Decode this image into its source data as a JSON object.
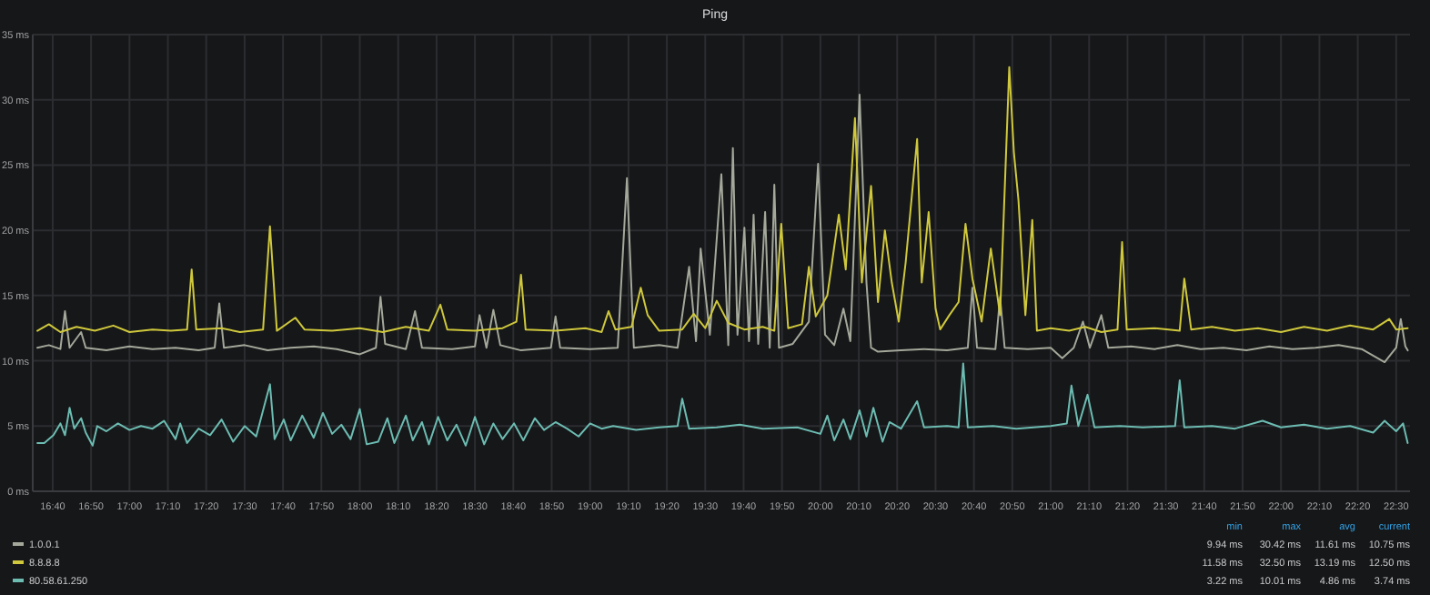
{
  "chart_data": {
    "type": "line",
    "title": "Ping",
    "legend": "bottom",
    "grid": true,
    "marker": "none",
    "line_style": "solid",
    "xlim": [
      16.58,
      22.56
    ],
    "ylim": [
      0,
      35
    ],
    "yticks": [
      {
        "value": 0,
        "label": "0 ms"
      },
      {
        "value": 5,
        "label": "5 ms"
      },
      {
        "value": 10,
        "label": "10 ms"
      },
      {
        "value": 15,
        "label": "15 ms"
      },
      {
        "value": 20,
        "label": "20 ms"
      },
      {
        "value": 25,
        "label": "25 ms"
      },
      {
        "value": 30,
        "label": "30 ms"
      },
      {
        "value": 35,
        "label": "35 ms"
      }
    ],
    "xticks": [
      {
        "value": 16.6667,
        "label": "16:40"
      },
      {
        "value": 16.8333,
        "label": "16:50"
      },
      {
        "value": 17,
        "label": "17:00"
      },
      {
        "value": 17.1667,
        "label": "17:10"
      },
      {
        "value": 17.3333,
        "label": "17:20"
      },
      {
        "value": 17.5,
        "label": "17:30"
      },
      {
        "value": 17.6667,
        "label": "17:40"
      },
      {
        "value": 17.8333,
        "label": "17:50"
      },
      {
        "value": 18,
        "label": "18:00"
      },
      {
        "value": 18.1667,
        "label": "18:10"
      },
      {
        "value": 18.3333,
        "label": "18:20"
      },
      {
        "value": 18.5,
        "label": "18:30"
      },
      {
        "value": 18.6667,
        "label": "18:40"
      },
      {
        "value": 18.8333,
        "label": "18:50"
      },
      {
        "value": 19,
        "label": "19:00"
      },
      {
        "value": 19.1667,
        "label": "19:10"
      },
      {
        "value": 19.3333,
        "label": "19:20"
      },
      {
        "value": 19.5,
        "label": "19:30"
      },
      {
        "value": 19.6667,
        "label": "19:40"
      },
      {
        "value": 19.8333,
        "label": "19:50"
      },
      {
        "value": 20,
        "label": "20:00"
      },
      {
        "value": 20.1667,
        "label": "20:10"
      },
      {
        "value": 20.3333,
        "label": "20:20"
      },
      {
        "value": 20.5,
        "label": "20:30"
      },
      {
        "value": 20.6667,
        "label": "20:40"
      },
      {
        "value": 20.8333,
        "label": "20:50"
      },
      {
        "value": 21,
        "label": "21:00"
      },
      {
        "value": 21.1667,
        "label": "21:10"
      },
      {
        "value": 21.3333,
        "label": "21:20"
      },
      {
        "value": 21.5,
        "label": "21:30"
      },
      {
        "value": 21.6667,
        "label": "21:40"
      },
      {
        "value": 21.8333,
        "label": "21:50"
      },
      {
        "value": 22,
        "label": "22:00"
      },
      {
        "value": 22.1667,
        "label": "22:10"
      },
      {
        "value": 22.3333,
        "label": "22:20"
      },
      {
        "value": 22.5,
        "label": "22:30"
      }
    ],
    "annotations": [
      "min",
      "max",
      "avg",
      "current",
      "9.94 ms",
      "30.42 ms",
      "11.61 ms",
      "10.75 ms",
      "11.58 ms",
      "32.50 ms",
      "13.19 ms",
      "12.50 ms",
      "3.22 ms",
      "10.01 ms",
      "4.86 ms",
      "3.74 ms"
    ],
    "series": [
      {
        "name": "1.0.0.1",
        "color": "#a3a89a",
        "x": [
          16.6,
          16.65,
          16.7,
          16.72,
          16.74,
          16.79,
          16.81,
          16.9,
          17.0,
          17.1,
          17.2,
          17.3,
          17.37,
          17.39,
          17.41,
          17.5,
          17.6,
          17.7,
          17.8,
          17.9,
          18.0,
          18.07,
          18.09,
          18.11,
          18.2,
          18.24,
          18.27,
          18.4,
          18.5,
          18.52,
          18.55,
          18.58,
          18.61,
          18.7,
          18.83,
          18.85,
          18.87,
          19.0,
          19.12,
          19.16,
          19.19,
          19.3,
          19.38,
          19.43,
          19.46,
          19.48,
          19.52,
          19.57,
          19.6,
          19.62,
          19.64,
          19.67,
          19.69,
          19.71,
          19.73,
          19.76,
          19.78,
          19.8,
          19.82,
          19.88,
          19.95,
          19.99,
          20.02,
          20.06,
          20.1,
          20.13,
          20.17,
          20.2,
          20.22,
          20.25,
          20.35,
          20.45,
          20.55,
          20.64,
          20.66,
          20.68,
          20.76,
          20.78,
          20.8,
          20.9,
          21.0,
          21.05,
          21.1,
          21.14,
          21.17,
          21.22,
          21.25,
          21.35,
          21.45,
          21.55,
          21.65,
          21.75,
          21.85,
          21.95,
          22.05,
          22.15,
          22.25,
          22.35,
          22.45,
          22.5,
          22.52,
          22.54,
          22.55
        ],
        "values": [
          11.0,
          11.2,
          10.9,
          13.8,
          11.0,
          12.2,
          11.0,
          10.8,
          11.1,
          10.9,
          11.0,
          10.8,
          11.0,
          14.4,
          11.0,
          11.2,
          10.8,
          11.0,
          11.1,
          10.9,
          10.5,
          11.0,
          14.9,
          11.3,
          10.9,
          13.8,
          11.0,
          10.9,
          11.1,
          13.5,
          11.0,
          13.9,
          11.2,
          10.8,
          11.0,
          13.4,
          11.0,
          10.9,
          11.0,
          24.0,
          11.0,
          11.2,
          11.0,
          17.2,
          11.5,
          18.6,
          12.0,
          24.3,
          11.2,
          26.3,
          12.0,
          20.2,
          11.5,
          21.2,
          11.3,
          21.4,
          11.0,
          23.5,
          11.0,
          11.3,
          13.0,
          25.1,
          12.0,
          11.2,
          14.0,
          11.5,
          30.4,
          16.0,
          11.0,
          10.7,
          10.8,
          10.9,
          10.8,
          11.0,
          15.6,
          11.0,
          10.9,
          14.9,
          11.0,
          10.9,
          11.0,
          10.2,
          11.0,
          13.0,
          11.0,
          13.5,
          11.0,
          11.1,
          10.9,
          11.2,
          10.9,
          11.0,
          10.8,
          11.1,
          10.9,
          11.0,
          11.2,
          10.9,
          9.9,
          11.0,
          13.2,
          11.1,
          10.8
        ]
      },
      {
        "name": "8.8.8.8",
        "color": "#cfc83c",
        "x": [
          16.6,
          16.65,
          16.7,
          16.77,
          16.85,
          16.93,
          17.0,
          17.1,
          17.18,
          17.25,
          17.27,
          17.29,
          17.4,
          17.48,
          17.58,
          17.61,
          17.64,
          17.72,
          17.76,
          17.88,
          18.0,
          18.1,
          18.2,
          18.3,
          18.35,
          18.38,
          18.5,
          18.62,
          18.68,
          18.7,
          18.72,
          18.85,
          18.98,
          19.05,
          19.08,
          19.11,
          19.18,
          19.22,
          19.25,
          19.3,
          19.4,
          19.45,
          19.5,
          19.55,
          19.6,
          19.67,
          19.75,
          19.8,
          19.83,
          19.86,
          19.92,
          19.95,
          19.98,
          20.03,
          20.08,
          20.11,
          20.15,
          20.18,
          20.22,
          20.25,
          20.28,
          20.31,
          20.34,
          20.37,
          20.42,
          20.44,
          20.47,
          20.5,
          20.52,
          20.56,
          20.6,
          20.63,
          20.66,
          20.7,
          20.74,
          20.78,
          20.82,
          20.84,
          20.86,
          20.89,
          20.92,
          20.94,
          21.0,
          21.08,
          21.15,
          21.22,
          21.29,
          21.31,
          21.33,
          21.45,
          21.56,
          21.58,
          21.61,
          21.7,
          21.8,
          21.9,
          22.0,
          22.1,
          22.2,
          22.3,
          22.4,
          22.47,
          22.5,
          22.55
        ],
        "values": [
          12.3,
          12.8,
          12.2,
          12.6,
          12.3,
          12.7,
          12.2,
          12.4,
          12.3,
          12.4,
          17.0,
          12.4,
          12.5,
          12.2,
          12.4,
          20.3,
          12.3,
          13.3,
          12.4,
          12.3,
          12.5,
          12.2,
          12.6,
          12.3,
          14.3,
          12.4,
          12.3,
          12.5,
          13.0,
          16.6,
          12.4,
          12.3,
          12.5,
          12.2,
          13.8,
          12.4,
          12.6,
          15.6,
          13.5,
          12.3,
          12.4,
          13.6,
          12.5,
          14.6,
          12.9,
          12.4,
          12.6,
          12.3,
          20.5,
          12.5,
          12.8,
          17.2,
          13.4,
          15.0,
          21.2,
          17.0,
          28.6,
          16.0,
          23.4,
          14.5,
          20.0,
          16.0,
          13.0,
          17.5,
          27.0,
          16.0,
          21.4,
          14.0,
          12.4,
          13.5,
          14.5,
          20.5,
          16.3,
          13.0,
          18.6,
          13.5,
          32.5,
          26.0,
          22.3,
          13.5,
          20.8,
          12.3,
          12.5,
          12.3,
          12.6,
          12.2,
          12.4,
          19.1,
          12.4,
          12.5,
          12.3,
          16.3,
          12.4,
          12.6,
          12.3,
          12.5,
          12.2,
          12.6,
          12.3,
          12.7,
          12.4,
          13.2,
          12.4,
          12.5
        ]
      },
      {
        "name": "80.58.61.250",
        "color": "#6cbcb2",
        "x": [
          16.6,
          16.63,
          16.67,
          16.7,
          16.72,
          16.74,
          16.76,
          16.79,
          16.81,
          16.84,
          16.86,
          16.9,
          16.95,
          17.0,
          17.05,
          17.1,
          17.15,
          17.2,
          17.22,
          17.25,
          17.3,
          17.35,
          17.4,
          17.45,
          17.5,
          17.55,
          17.61,
          17.63,
          17.67,
          17.7,
          17.75,
          17.8,
          17.84,
          17.88,
          17.92,
          17.96,
          18.0,
          18.03,
          18.08,
          18.12,
          18.15,
          18.2,
          18.23,
          18.27,
          18.3,
          18.34,
          18.38,
          18.42,
          18.46,
          18.5,
          18.54,
          18.58,
          18.62,
          18.67,
          18.71,
          18.76,
          18.8,
          18.85,
          18.9,
          18.95,
          19.0,
          19.05,
          19.1,
          19.2,
          19.3,
          19.38,
          19.4,
          19.43,
          19.55,
          19.65,
          19.75,
          19.9,
          20.0,
          20.03,
          20.06,
          20.1,
          20.13,
          20.17,
          20.2,
          20.23,
          20.27,
          20.3,
          20.35,
          20.42,
          20.45,
          20.55,
          20.6,
          20.62,
          20.64,
          20.75,
          20.85,
          21.0,
          21.07,
          21.09,
          21.12,
          21.16,
          21.19,
          21.3,
          21.4,
          21.54,
          21.56,
          21.58,
          21.7,
          21.8,
          21.92,
          22.0,
          22.1,
          22.2,
          22.3,
          22.4,
          22.45,
          22.5,
          22.53,
          22.55
        ],
        "values": [
          3.7,
          3.7,
          4.3,
          5.2,
          4.3,
          6.4,
          4.8,
          5.6,
          4.5,
          3.5,
          5.0,
          4.6,
          5.2,
          4.7,
          5.0,
          4.8,
          5.4,
          4.0,
          5.2,
          3.7,
          4.8,
          4.3,
          5.5,
          3.8,
          5.0,
          4.2,
          8.2,
          4.0,
          5.5,
          3.9,
          5.8,
          4.1,
          6.0,
          4.4,
          5.1,
          4.0,
          6.3,
          3.6,
          3.8,
          5.6,
          3.7,
          5.8,
          3.9,
          5.3,
          3.6,
          5.7,
          3.9,
          5.1,
          3.5,
          5.7,
          3.6,
          5.2,
          4.0,
          5.2,
          3.9,
          5.6,
          4.7,
          5.3,
          4.8,
          4.2,
          5.2,
          4.8,
          5.0,
          4.7,
          4.9,
          5.0,
          7.1,
          4.8,
          4.9,
          5.1,
          4.8,
          4.9,
          4.4,
          5.8,
          3.9,
          5.5,
          4.0,
          6.2,
          4.2,
          6.4,
          3.8,
          5.3,
          4.8,
          6.9,
          4.9,
          5.0,
          4.9,
          9.8,
          4.9,
          5.0,
          4.8,
          5.0,
          5.2,
          8.1,
          5.0,
          7.4,
          4.9,
          5.0,
          4.9,
          5.0,
          8.5,
          4.9,
          5.0,
          4.8,
          5.4,
          4.9,
          5.1,
          4.8,
          5.0,
          4.5,
          5.4,
          4.6,
          5.2,
          3.7
        ]
      }
    ]
  }
}
